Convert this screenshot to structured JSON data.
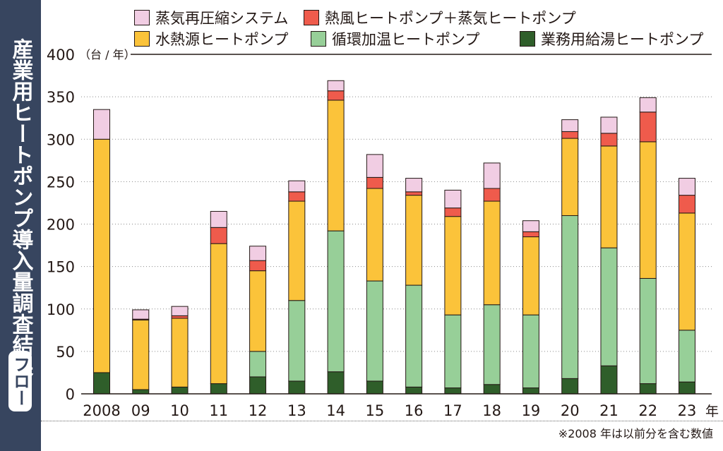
{
  "side_title": {
    "main": "産業用ヒートポンプ導入量調査結果",
    "badge": "フロー"
  },
  "chart_data": {
    "type": "bar",
    "stacked": true,
    "unit_label": "（台 / 年）",
    "categories": [
      "2008",
      "09",
      "10",
      "11",
      "12",
      "13",
      "14",
      "15",
      "16",
      "17",
      "18",
      "19",
      "20",
      "21",
      "22",
      "23"
    ],
    "x_suffix": "年",
    "ylim": [
      0,
      400
    ],
    "yticks": [
      0,
      50,
      100,
      150,
      200,
      250,
      300,
      350,
      400
    ],
    "grid": "dotted horizontal",
    "legend_position": "top",
    "series": [
      {
        "name": "業務用給湯ヒートポンプ",
        "color": "#2f5e2a",
        "values": [
          25,
          5,
          8,
          12,
          20,
          15,
          26,
          15,
          8,
          7,
          11,
          7,
          18,
          33,
          12,
          14
        ]
      },
      {
        "name": "循環加温ヒートポンプ",
        "color": "#97cf98",
        "values": [
          0,
          0,
          0,
          0,
          30,
          95,
          166,
          118,
          120,
          86,
          94,
          86,
          192,
          139,
          124,
          61
        ]
      },
      {
        "name": "水熱源ヒートポンプ",
        "color": "#fbc33a",
        "values": [
          275,
          82,
          81,
          165,
          95,
          117,
          154,
          109,
          106,
          116,
          122,
          92,
          91,
          120,
          161,
          138
        ]
      },
      {
        "name": "熱風ヒートポンプ＋蒸気ヒートポンプ",
        "color": "#ef5b4c",
        "values": [
          0,
          1,
          3,
          19,
          12,
          11,
          11,
          13,
          4,
          10,
          15,
          6,
          8,
          15,
          35,
          21
        ]
      },
      {
        "name": "蒸気再圧縮システム",
        "color": "#f1cde3",
        "values": [
          35,
          11,
          11,
          19,
          17,
          13,
          12,
          27,
          16,
          21,
          30,
          13,
          14,
          19,
          17,
          20
        ]
      }
    ]
  },
  "legend": [
    {
      "label": "蒸気再圧縮システム",
      "color": "#f1cde3"
    },
    {
      "label": "熱風ヒートポンプ＋蒸気ヒートポンプ",
      "color": "#ef5b4c"
    },
    {
      "label": "水熱源ヒートポンプ",
      "color": "#fbc33a"
    },
    {
      "label": "循環加温ヒートポンプ",
      "color": "#97cf98"
    },
    {
      "label": "業務用給湯ヒートポンプ",
      "color": "#2f5e2a"
    }
  ],
  "note": "※2008 年は以前分を含む数値"
}
